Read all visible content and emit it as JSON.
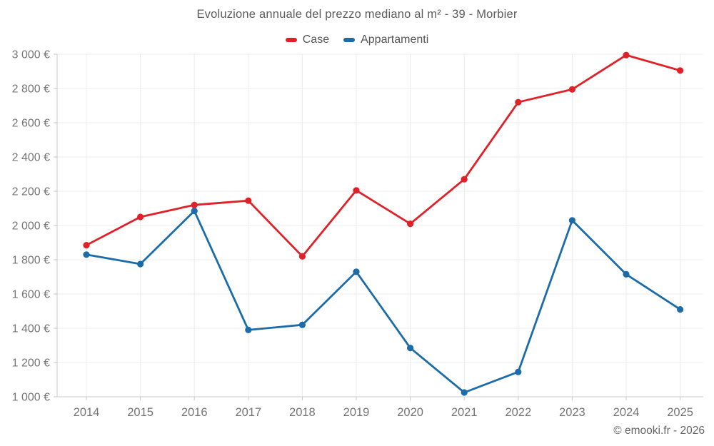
{
  "chart_data": {
    "type": "line",
    "title": "Evoluzione annuale del prezzo mediano al m² - 39 - Morbier",
    "categories": [
      "2014",
      "2015",
      "2016",
      "2017",
      "2018",
      "2019",
      "2020",
      "2021",
      "2022",
      "2023",
      "2024",
      "2025"
    ],
    "series": [
      {
        "name": "Case",
        "color": "#e02128",
        "values": [
          1885,
          2050,
          2120,
          2145,
          1820,
          2205,
          2010,
          2270,
          2720,
          2795,
          2995,
          2905
        ]
      },
      {
        "name": "Appartamenti",
        "color": "#1b6ca8",
        "values": [
          1830,
          1775,
          2085,
          1390,
          1420,
          1730,
          1285,
          1025,
          1145,
          2030,
          1715,
          1510
        ]
      }
    ],
    "ylabel": "",
    "xlabel": "",
    "ylim": [
      1000,
      3000
    ],
    "ytick_step": 200,
    "ytick_suffix": "€",
    "grid": true,
    "legend_position": "top"
  },
  "colors": {
    "grid_line": "#ececec",
    "axis_line": "#c9c9c9",
    "tick_label": "#757575",
    "title_text": "#5c5c5c"
  },
  "footer": {
    "copyright": "© emooki.fr - 2026"
  }
}
